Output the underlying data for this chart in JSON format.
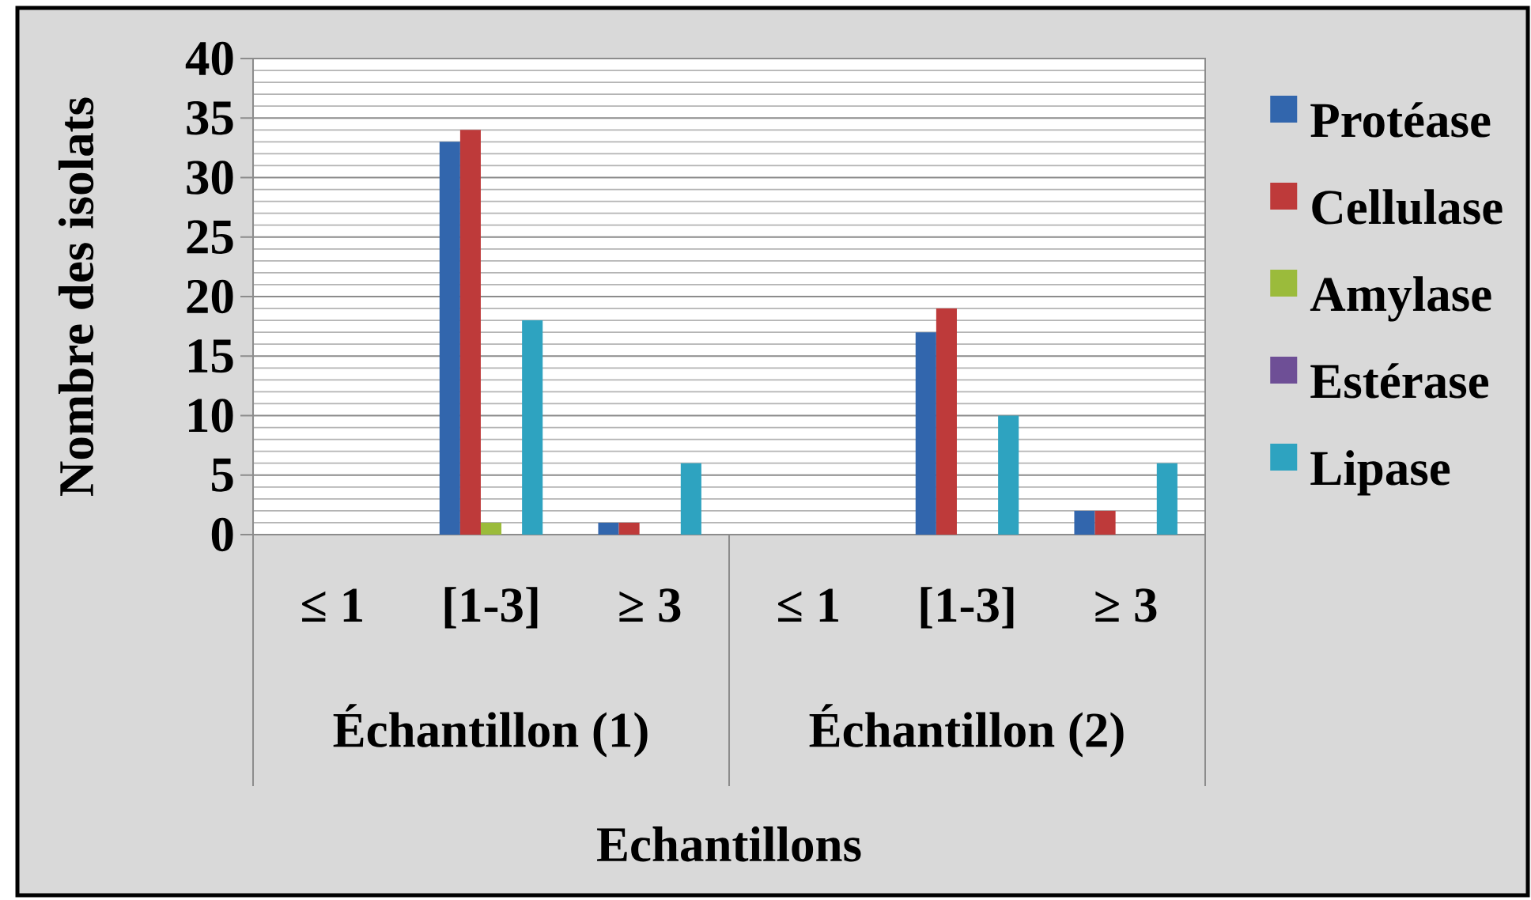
{
  "chart_data": {
    "type": "bar",
    "ylabel": "Nombre des isolats",
    "xlabel": "Echantillons",
    "categories": [
      "≤ 1",
      "[1-3]",
      "≥ 3",
      "≤ 1",
      "[1-3]",
      "≥ 3"
    ],
    "annotations": [
      "Échantillon (1)",
      "Échantillon (2)"
    ],
    "series": [
      {
        "name": "Protéase",
        "color": "#3266ad",
        "values": [
          0,
          33,
          1,
          0,
          17,
          2
        ]
      },
      {
        "name": "Cellulase",
        "color": "#be3a3a",
        "values": [
          0,
          34,
          1,
          0,
          19,
          2
        ]
      },
      {
        "name": "Amylase",
        "color": "#9bbb3b",
        "values": [
          0,
          1,
          0,
          0,
          0,
          0
        ]
      },
      {
        "name": "Estérase",
        "color": "#6e4f96",
        "values": [
          0,
          0,
          0,
          0,
          0,
          0
        ]
      },
      {
        "name": "Lipase",
        "color": "#2ea3c0",
        "values": [
          0,
          18,
          6,
          0,
          10,
          6
        ]
      }
    ],
    "ylim": [
      0,
      40
    ],
    "yticks": [
      0,
      5,
      10,
      15,
      20,
      25,
      30,
      35,
      40
    ],
    "grid": "y",
    "legend": "right"
  }
}
